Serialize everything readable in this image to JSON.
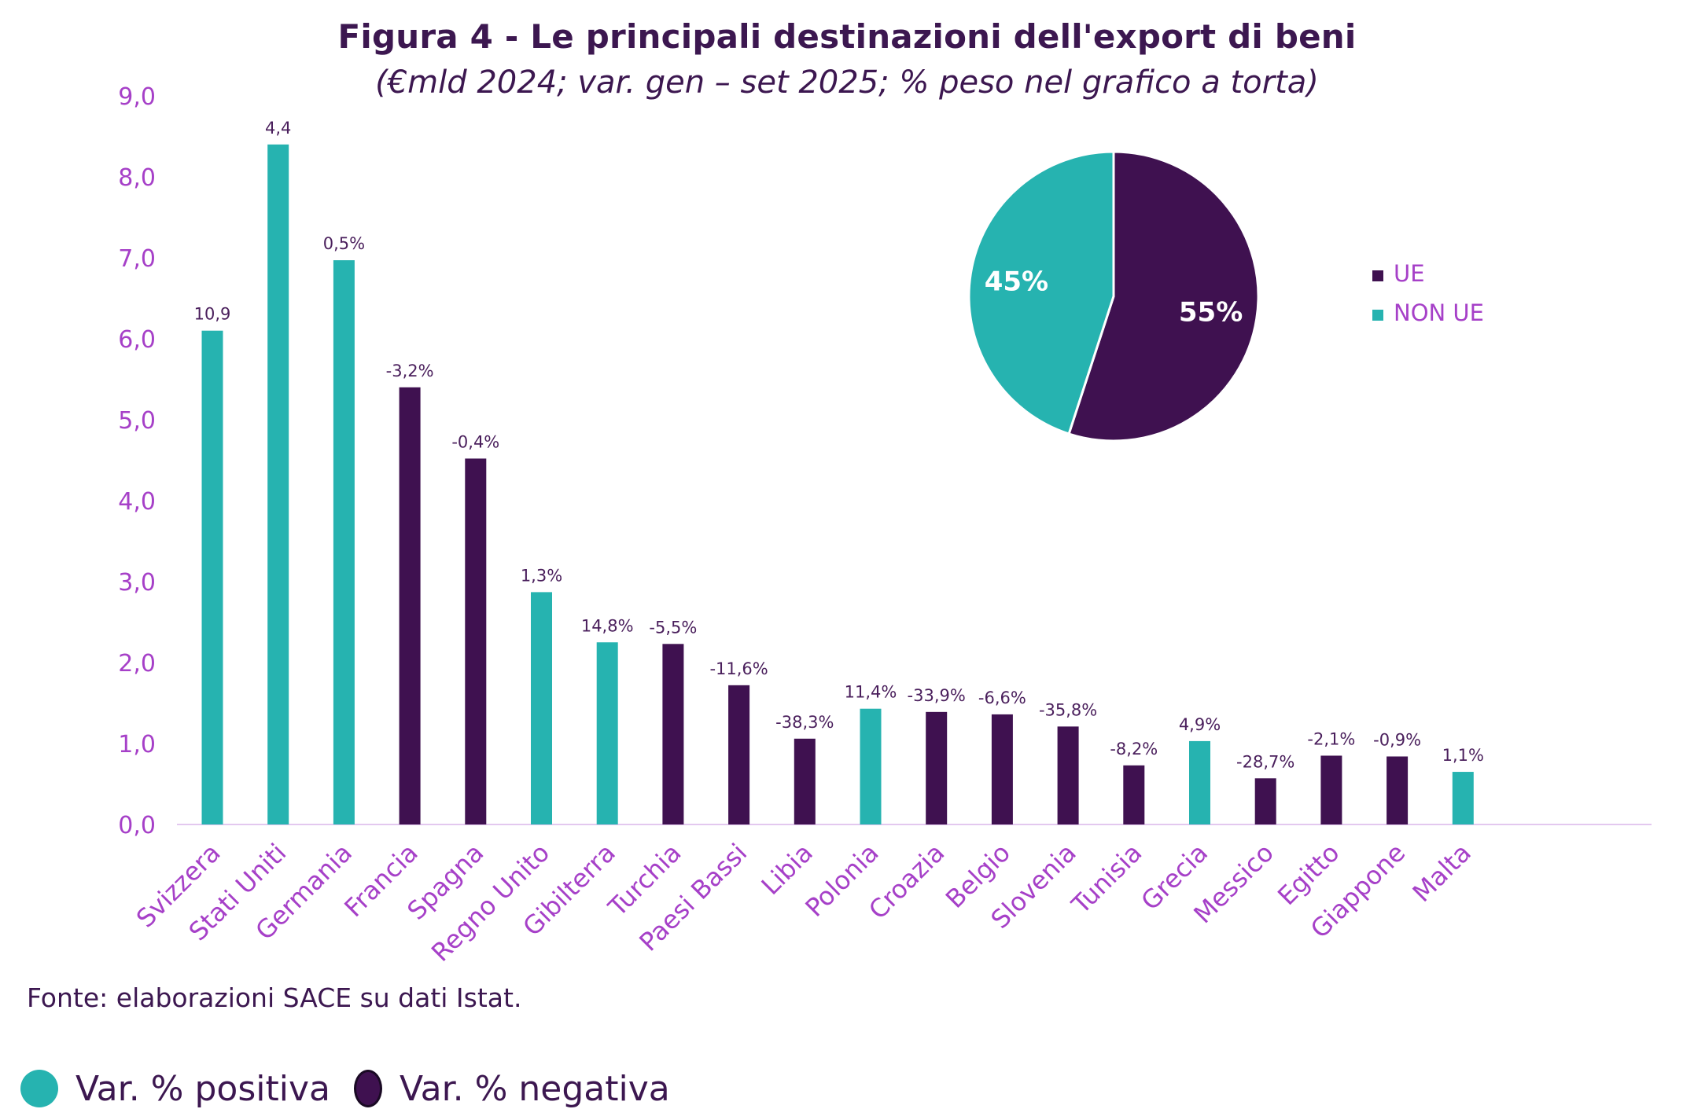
{
  "title": "Figura 4 - Le principali destinazioni dell'export di beni",
  "subtitle": "(€mld 2024; var. gen – set 2025; % peso nel grafico a torta)",
  "source": "Fonte: elaborazioni SACE su dati Istat.",
  "colors": {
    "positive": "#26b3b0",
    "negative": "#3f1150",
    "axis_text": "#a640c8",
    "title": "#3c1750",
    "axis_line": "#e3c8ef"
  },
  "legend_bottom": [
    {
      "label": "Var. % positiva",
      "color": "#26b3b0"
    },
    {
      "label": "Var. % negativa",
      "color": "#3f1150"
    }
  ],
  "chart_data": [
    {
      "type": "bar",
      "categories": [
        "Svizzera",
        "Stati Uniti",
        "Germania",
        "Francia",
        "Spagna",
        "Regno Unito",
        "Gibilterra",
        "Turchia",
        "Paesi Bassi",
        "Libia",
        "Polonia",
        "Croazia",
        "Belgio",
        "Slovenia",
        "Tunisia",
        "Grecia",
        "Messico",
        "Egitto",
        "Giappone",
        "Malta"
      ],
      "values": [
        6.1,
        8.4,
        6.97,
        5.4,
        4.52,
        2.87,
        2.25,
        2.23,
        1.72,
        1.06,
        1.43,
        1.39,
        1.36,
        1.21,
        0.73,
        1.03,
        0.57,
        0.85,
        0.84,
        0.65
      ],
      "data_labels": [
        "10,9",
        "4,4",
        "0,5%",
        "-3,2%",
        "-0,4%",
        "1,3%",
        "14,8%",
        "-5,5%",
        "-11,6%",
        "-38,3%",
        "11,4%",
        "-33,9%",
        "-6,6%",
        "-35,8%",
        "-8,2%",
        "4,9%",
        "-28,7%",
        "-2,1%",
        "-0,9%",
        "1,1%"
      ],
      "variation_sign": [
        "positive",
        "positive",
        "positive",
        "negative",
        "negative",
        "positive",
        "positive",
        "negative",
        "negative",
        "negative",
        "positive",
        "negative",
        "negative",
        "negative",
        "negative",
        "positive",
        "negative",
        "negative",
        "negative",
        "positive"
      ],
      "ylim": [
        0,
        9
      ],
      "yticks": [
        "0,0",
        "1,0",
        "2,0",
        "3,0",
        "4,0",
        "5,0",
        "6,0",
        "7,0",
        "8,0",
        "9,0"
      ],
      "grid": false
    },
    {
      "type": "pie",
      "slices": [
        {
          "name": "UE",
          "value": 55,
          "label": "55%",
          "color": "#3f1150"
        },
        {
          "name": "NON UE",
          "value": 45,
          "label": "45%",
          "color": "#26b3b0"
        }
      ],
      "legend": [
        "UE",
        "NON UE"
      ],
      "legend_position": "right"
    }
  ]
}
